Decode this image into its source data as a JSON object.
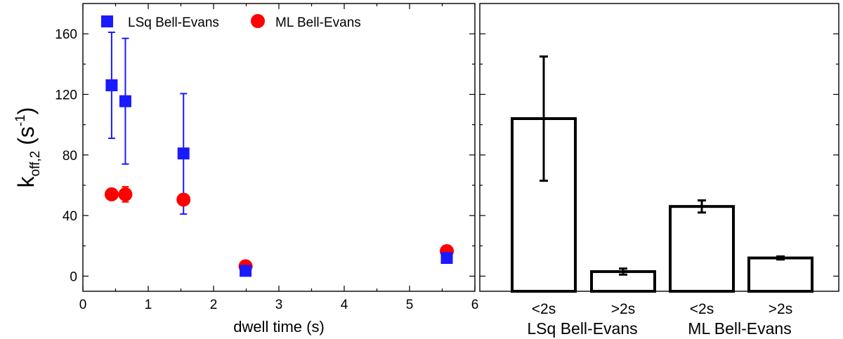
{
  "chart_data": [
    {
      "type": "scatter",
      "xlabel": "dwell time (s)",
      "ylabel": {
        "main": "k",
        "sub": "off,2",
        "unit_open": "(s",
        "unit_sup": "-1",
        "unit_close": ")"
      },
      "xlim": [
        0,
        6
      ],
      "ylim": [
        -10,
        180
      ],
      "xticks": [
        "0",
        "1",
        "2",
        "3",
        "4",
        "5",
        "6"
      ],
      "yticks": [
        "0",
        "40",
        "80",
        "120",
        "160"
      ],
      "legend_position": "top",
      "series": [
        {
          "name": "LSq Bell-Evans",
          "marker": "square",
          "color": "#1a1aff",
          "points": [
            {
              "x": 0.44,
              "y": 126,
              "err_lo": 91,
              "err_hi": 161
            },
            {
              "x": 0.65,
              "y": 115.5,
              "err_lo": 74,
              "err_hi": 157
            },
            {
              "x": 1.54,
              "y": 81,
              "err_lo": 41,
              "err_hi": 120.5
            },
            {
              "x": 2.49,
              "y": 3.5,
              "err_lo": 1,
              "err_hi": 6
            },
            {
              "x": 5.57,
              "y": 12,
              "err_lo": 10,
              "err_hi": 14
            }
          ]
        },
        {
          "name": "ML Bell-Evans",
          "marker": "circle",
          "color": "#ff0000",
          "points": [
            {
              "x": 0.44,
              "y": 54,
              "err_lo": 54,
              "err_hi": 54
            },
            {
              "x": 0.65,
              "y": 54,
              "err_lo": 49,
              "err_hi": 59
            },
            {
              "x": 1.54,
              "y": 50.5,
              "err_lo": 50.5,
              "err_hi": 50.5
            },
            {
              "x": 2.49,
              "y": 6.5,
              "err_lo": 6.5,
              "err_hi": 6.5
            },
            {
              "x": 5.57,
              "y": 16.5,
              "err_lo": 16.5,
              "err_hi": 16.5
            }
          ]
        }
      ]
    },
    {
      "type": "bar",
      "ylim": [
        -10,
        180
      ],
      "categories": [
        "<2s",
        ">2s",
        "<2s",
        ">2s"
      ],
      "groups": [
        "LSq Bell-Evans",
        "ML Bell-Evans"
      ],
      "values": [
        104,
        3,
        46,
        12
      ],
      "errors": [
        {
          "lo": 63,
          "hi": 145
        },
        {
          "lo": 1,
          "hi": 5
        },
        {
          "lo": 42,
          "hi": 50
        },
        {
          "lo": 11,
          "hi": 13
        }
      ],
      "bar_color": "#ffffff",
      "edge_color": "#000000"
    }
  ]
}
